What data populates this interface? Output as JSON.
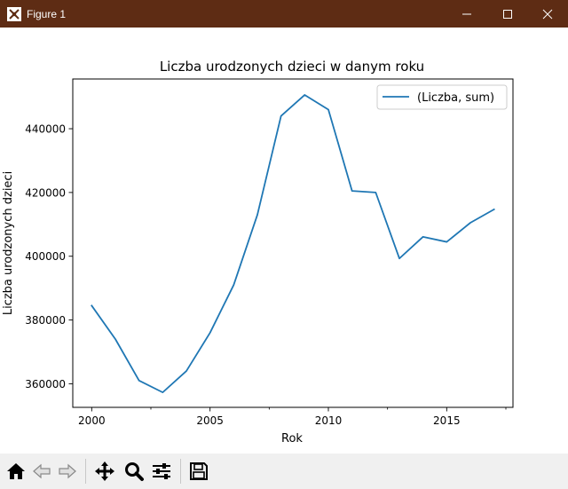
{
  "window": {
    "title": "Figure 1",
    "titlebar_color": "#5e2c14"
  },
  "toolbar": {
    "buttons": [
      {
        "name": "home-icon"
      },
      {
        "name": "back-icon"
      },
      {
        "name": "forward-icon"
      },
      {
        "name": "pan-icon"
      },
      {
        "name": "zoom-icon"
      },
      {
        "name": "configure-subplots-icon"
      },
      {
        "name": "save-icon"
      }
    ]
  },
  "chart_data": {
    "type": "line",
    "title": "Liczba urodzonych dzieci w danym roku",
    "xlabel": "Rok",
    "ylabel": "Liczba urodzonych dzieci",
    "xlim": [
      1999.2,
      2017.8
    ],
    "ylim": [
      352600,
      455600
    ],
    "xticks": [
      2000,
      2005,
      2010,
      2015
    ],
    "xtick_labels": [
      "2000",
      "2005",
      "2010",
      "2015"
    ],
    "yticks": [
      360000,
      380000,
      400000,
      420000,
      440000
    ],
    "ytick_labels": [
      "360000",
      "380000",
      "400000",
      "420000",
      "440000"
    ],
    "legend_position": "top-right",
    "grid": false,
    "series": [
      {
        "name": "(Liczba, sum)",
        "color": "#1f77b4",
        "x": [
          2000,
          2001,
          2002,
          2003,
          2004,
          2005,
          2006,
          2007,
          2008,
          2009,
          2010,
          2011,
          2012,
          2013,
          2014,
          2015,
          2016,
          2017
        ],
        "y": [
          384500,
          374000,
          361000,
          357300,
          364000,
          376000,
          391000,
          413000,
          444000,
          450600,
          446000,
          420500,
          420000,
          399300,
          406100,
          404500,
          410500,
          414700
        ]
      }
    ]
  }
}
